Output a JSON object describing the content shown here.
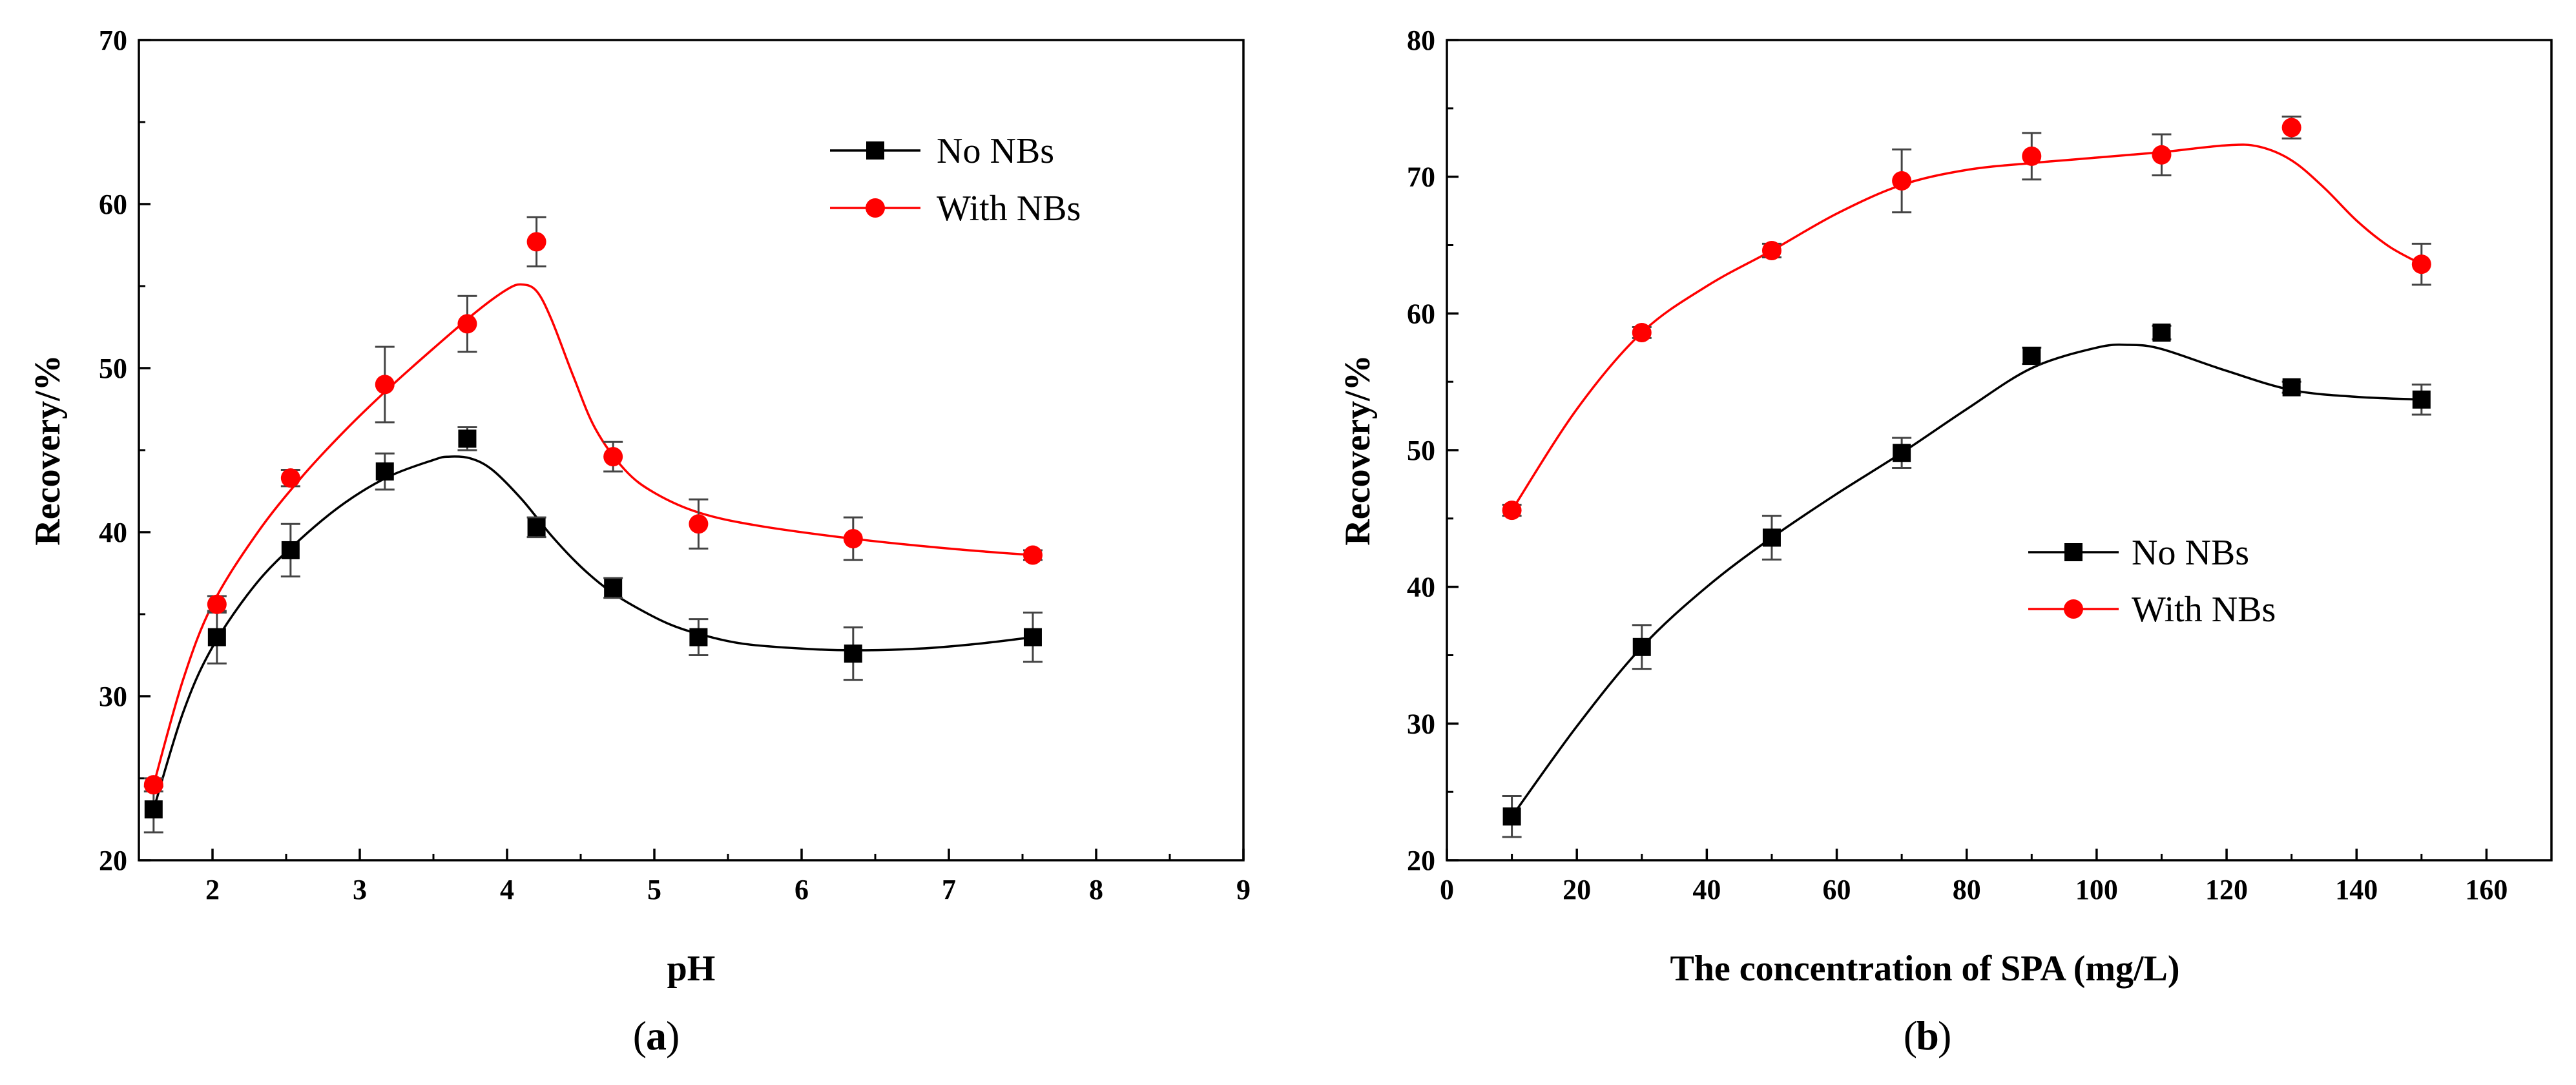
{
  "chart_data": [
    {
      "panel_label": "a",
      "type": "scatter",
      "xlabel": "pH",
      "ylabel": "Recovery/%",
      "xlim": [
        1.5,
        9
      ],
      "ylim": [
        20,
        70
      ],
      "xticks": [
        2,
        3,
        4,
        5,
        6,
        7,
        8,
        9
      ],
      "yticks": [
        20,
        30,
        40,
        50,
        60,
        70
      ],
      "legend_position": "top-right",
      "series": [
        {
          "name": "No NBs",
          "color": "#000000",
          "marker": "square",
          "x": [
            1.6,
            2.03,
            2.53,
            3.17,
            3.73,
            4.2,
            4.72,
            5.3,
            6.35,
            7.57
          ],
          "y": [
            23.1,
            33.6,
            38.9,
            43.7,
            45.7,
            40.3,
            36.6,
            33.6,
            32.6,
            33.6
          ],
          "err": [
            1.4,
            1.6,
            1.6,
            1.1,
            0.7,
            0.6,
            0.6,
            1.1,
            1.6,
            1.5
          ],
          "fit_x": [
            1.6,
            1.8,
            2.0,
            2.3,
            2.6,
            2.9,
            3.2,
            3.5,
            3.6,
            3.75,
            3.9,
            4.1,
            4.3,
            4.5,
            4.7,
            4.9,
            5.1,
            5.3,
            5.6,
            6.0,
            6.35,
            6.8,
            7.2,
            7.57
          ],
          "fit_y": [
            23.1,
            29.0,
            33.0,
            36.9,
            39.6,
            41.8,
            43.4,
            44.4,
            44.6,
            44.5,
            43.8,
            42.0,
            39.8,
            37.9,
            36.4,
            35.3,
            34.4,
            33.8,
            33.2,
            32.9,
            32.8,
            32.9,
            33.2,
            33.6
          ]
        },
        {
          "name": "With NBs",
          "color": "#ff0000",
          "marker": "circle",
          "x": [
            1.6,
            2.03,
            2.53,
            3.17,
            3.73,
            4.2,
            4.72,
            5.3,
            6.35,
            7.57
          ],
          "y": [
            24.6,
            35.6,
            43.3,
            49.0,
            52.7,
            57.7,
            44.6,
            40.5,
            39.6,
            38.6
          ],
          "err": [
            0.4,
            0.5,
            0.5,
            2.3,
            1.7,
            1.5,
            0.9,
            1.5,
            1.3,
            0.3
          ],
          "fit_x": [
            1.6,
            1.8,
            2.0,
            2.3,
            2.6,
            2.9,
            3.2,
            3.5,
            3.8,
            4.0,
            4.1,
            4.2,
            4.3,
            4.45,
            4.6,
            4.8,
            5.0,
            5.3,
            5.7,
            6.35,
            7.0,
            7.57
          ],
          "fit_y": [
            24.6,
            31.0,
            35.6,
            39.9,
            43.3,
            46.2,
            48.8,
            51.2,
            53.5,
            54.8,
            55.1,
            54.7,
            53.0,
            49.5,
            46.3,
            43.8,
            42.4,
            41.2,
            40.4,
            39.6,
            39.0,
            38.6
          ]
        }
      ]
    },
    {
      "panel_label": "b",
      "type": "scatter",
      "xlabel": "The concentration of SPA (mg/L)",
      "ylabel": "Recovery/%",
      "xlim": [
        0,
        170
      ],
      "ylim": [
        20,
        80
      ],
      "xticks": [
        0,
        20,
        40,
        60,
        80,
        100,
        120,
        140,
        160
      ],
      "yticks": [
        20,
        30,
        40,
        50,
        60,
        70,
        80
      ],
      "legend_position": "center-right",
      "series": [
        {
          "name": "No NBs",
          "color": "#000000",
          "marker": "square",
          "x": [
            10,
            30,
            50,
            70,
            90,
            110,
            130,
            150
          ],
          "y": [
            23.2,
            35.6,
            43.6,
            49.8,
            56.9,
            58.6,
            54.6,
            53.7
          ],
          "err": [
            1.5,
            1.6,
            1.6,
            1.1,
            0.6,
            0.5,
            0.4,
            1.1
          ],
          "fit_x": [
            10,
            20,
            30,
            40,
            50,
            60,
            70,
            80,
            90,
            100,
            105,
            110,
            120,
            130,
            140,
            150
          ],
          "fit_y": [
            23.2,
            29.8,
            35.6,
            40.0,
            43.6,
            46.8,
            49.8,
            53.0,
            56.0,
            57.5,
            57.7,
            57.4,
            55.8,
            54.4,
            53.9,
            53.7
          ]
        },
        {
          "name": "With NBs",
          "color": "#ff0000",
          "marker": "circle",
          "x": [
            10,
            30,
            50,
            70,
            90,
            110,
            130,
            150
          ],
          "y": [
            45.6,
            58.6,
            64.6,
            69.7,
            71.5,
            71.6,
            73.6,
            63.6
          ],
          "err": [
            0.4,
            0.4,
            0.5,
            2.3,
            1.7,
            1.5,
            0.8,
            1.5
          ],
          "fit_x": [
            10,
            20,
            30,
            40,
            50,
            60,
            70,
            80,
            90,
            100,
            110,
            120,
            125,
            130,
            135,
            140,
            145,
            150
          ],
          "fit_y": [
            45.6,
            53.0,
            58.6,
            62.0,
            64.6,
            67.3,
            69.4,
            70.5,
            71.0,
            71.4,
            71.8,
            72.3,
            72.2,
            71.2,
            69.2,
            66.8,
            64.9,
            63.6
          ]
        }
      ]
    }
  ]
}
